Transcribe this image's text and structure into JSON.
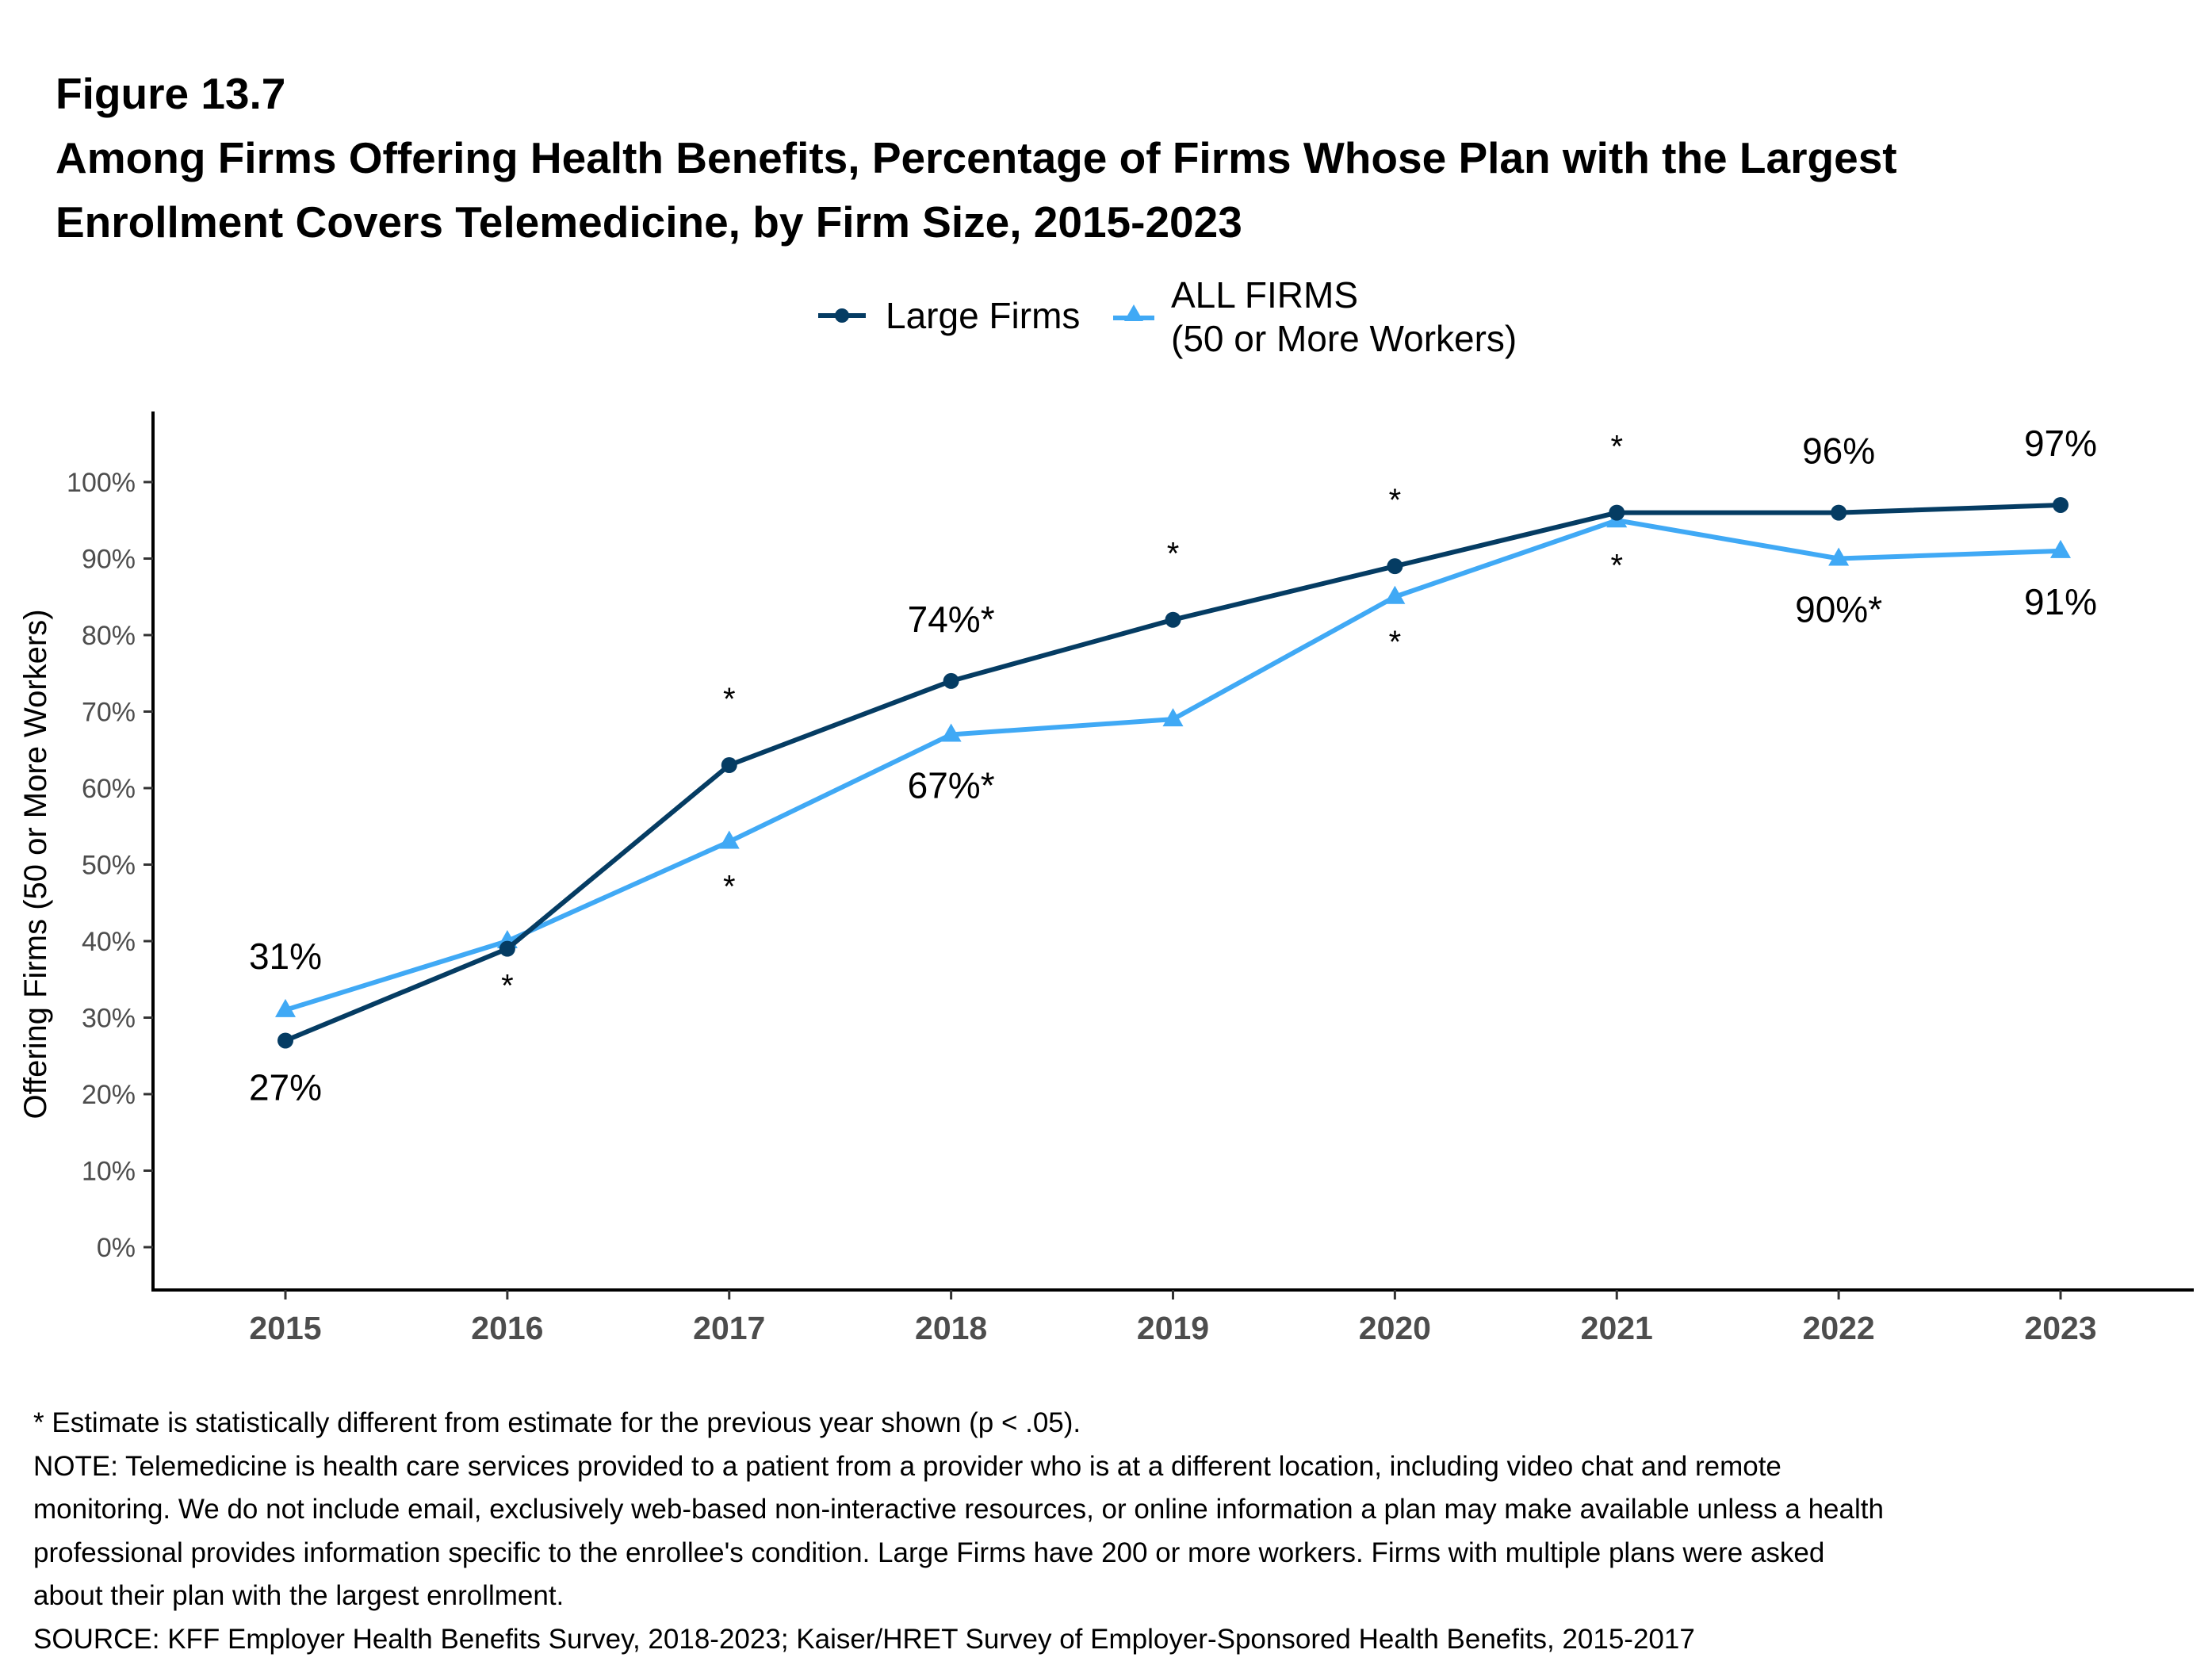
{
  "figure": {
    "number": "Figure 13.7",
    "title_lines": [
      "Among Firms Offering Health Benefits, Percentage of Firms Whose Plan with the Largest",
      "Enrollment Covers Telemedicine, by Firm Size, 2015-2023"
    ]
  },
  "legend": {
    "items": [
      {
        "label": "Large Firms",
        "marker": "circle",
        "color": "#053C63"
      },
      {
        "label_line1": "ALL FIRMS",
        "label_line2": "(50 or More Workers)",
        "marker": "triangle",
        "color": "#40A9F5"
      }
    ]
  },
  "chart_data": {
    "type": "line",
    "title": "Among Firms Offering Health Benefits, Percentage of Firms Whose Plan with the Largest Enrollment Covers Telemedicine, by Firm Size, 2015-2023",
    "xlabel": "",
    "ylabel": "Offering Firms (50 or More Workers)",
    "x": [
      2015,
      2016,
      2017,
      2018,
      2019,
      2020,
      2021,
      2022,
      2023
    ],
    "x_tick_labels": [
      "2015",
      "2016",
      "2017",
      "2018",
      "2019",
      "2020",
      "2021",
      "2022",
      "2023"
    ],
    "y_tick_labels": [
      "0%",
      "10%",
      "20%",
      "30%",
      "40%",
      "50%",
      "60%",
      "70%",
      "80%",
      "90%",
      "100%"
    ],
    "y_ticks": [
      0,
      10,
      20,
      30,
      40,
      50,
      60,
      70,
      80,
      90,
      100
    ],
    "ylim": [
      -4.5,
      109.5
    ],
    "xlim": [
      2014.4,
      2023.6
    ],
    "grid": false,
    "legend_position": "top-center",
    "series": [
      {
        "name": "Large Firms",
        "color": "#053C63",
        "marker": "circle",
        "values": [
          27,
          39,
          63,
          74,
          82,
          89,
          96,
          96,
          97
        ],
        "significant": [
          false,
          false,
          true,
          false,
          true,
          true,
          true,
          false,
          false
        ],
        "labels": [
          "27%",
          "",
          "*",
          "74%*",
          "*",
          "*",
          "*",
          "96%",
          "97%"
        ],
        "label_side": "above"
      },
      {
        "name": "ALL FIRMS (50 or More Workers)",
        "color": "#40A9F5",
        "marker": "triangle",
        "values": [
          31,
          40,
          53,
          67,
          69,
          85,
          95,
          90,
          91
        ],
        "significant": [
          false,
          true,
          true,
          true,
          false,
          true,
          true,
          true,
          false
        ],
        "labels": [
          "31%",
          "*",
          "*",
          "67%*",
          "",
          "*",
          "*",
          "90%*",
          "91%"
        ],
        "label_side": "below"
      }
    ],
    "annotations_note": "2015 labels: 31% above (All Firms), 27% below (Large Firms)"
  },
  "footer": {
    "lines": [
      "* Estimate is statistically different from estimate for the previous year shown (p < .05).",
      "NOTE: Telemedicine is health care services provided to a patient from a provider who is at a different location, including video chat and remote",
      "monitoring. We do not include email, exclusively web-based non-interactive resources, or online information a plan may make available unless a health",
      "professional provides information specific to the enrollee's condition.  Large Firms have 200 or more workers.  Firms with multiple plans were asked",
      "about their plan with the largest enrollment.",
      "SOURCE: KFF Employer Health Benefits Survey, 2018-2023; Kaiser/HRET Survey of Employer-Sponsored Health Benefits, 2015-2017"
    ]
  },
  "colors": {
    "axis": "#000000",
    "tick_label": "#4D4D4D",
    "large_firms": "#053C63",
    "all_firms": "#40A9F5"
  }
}
